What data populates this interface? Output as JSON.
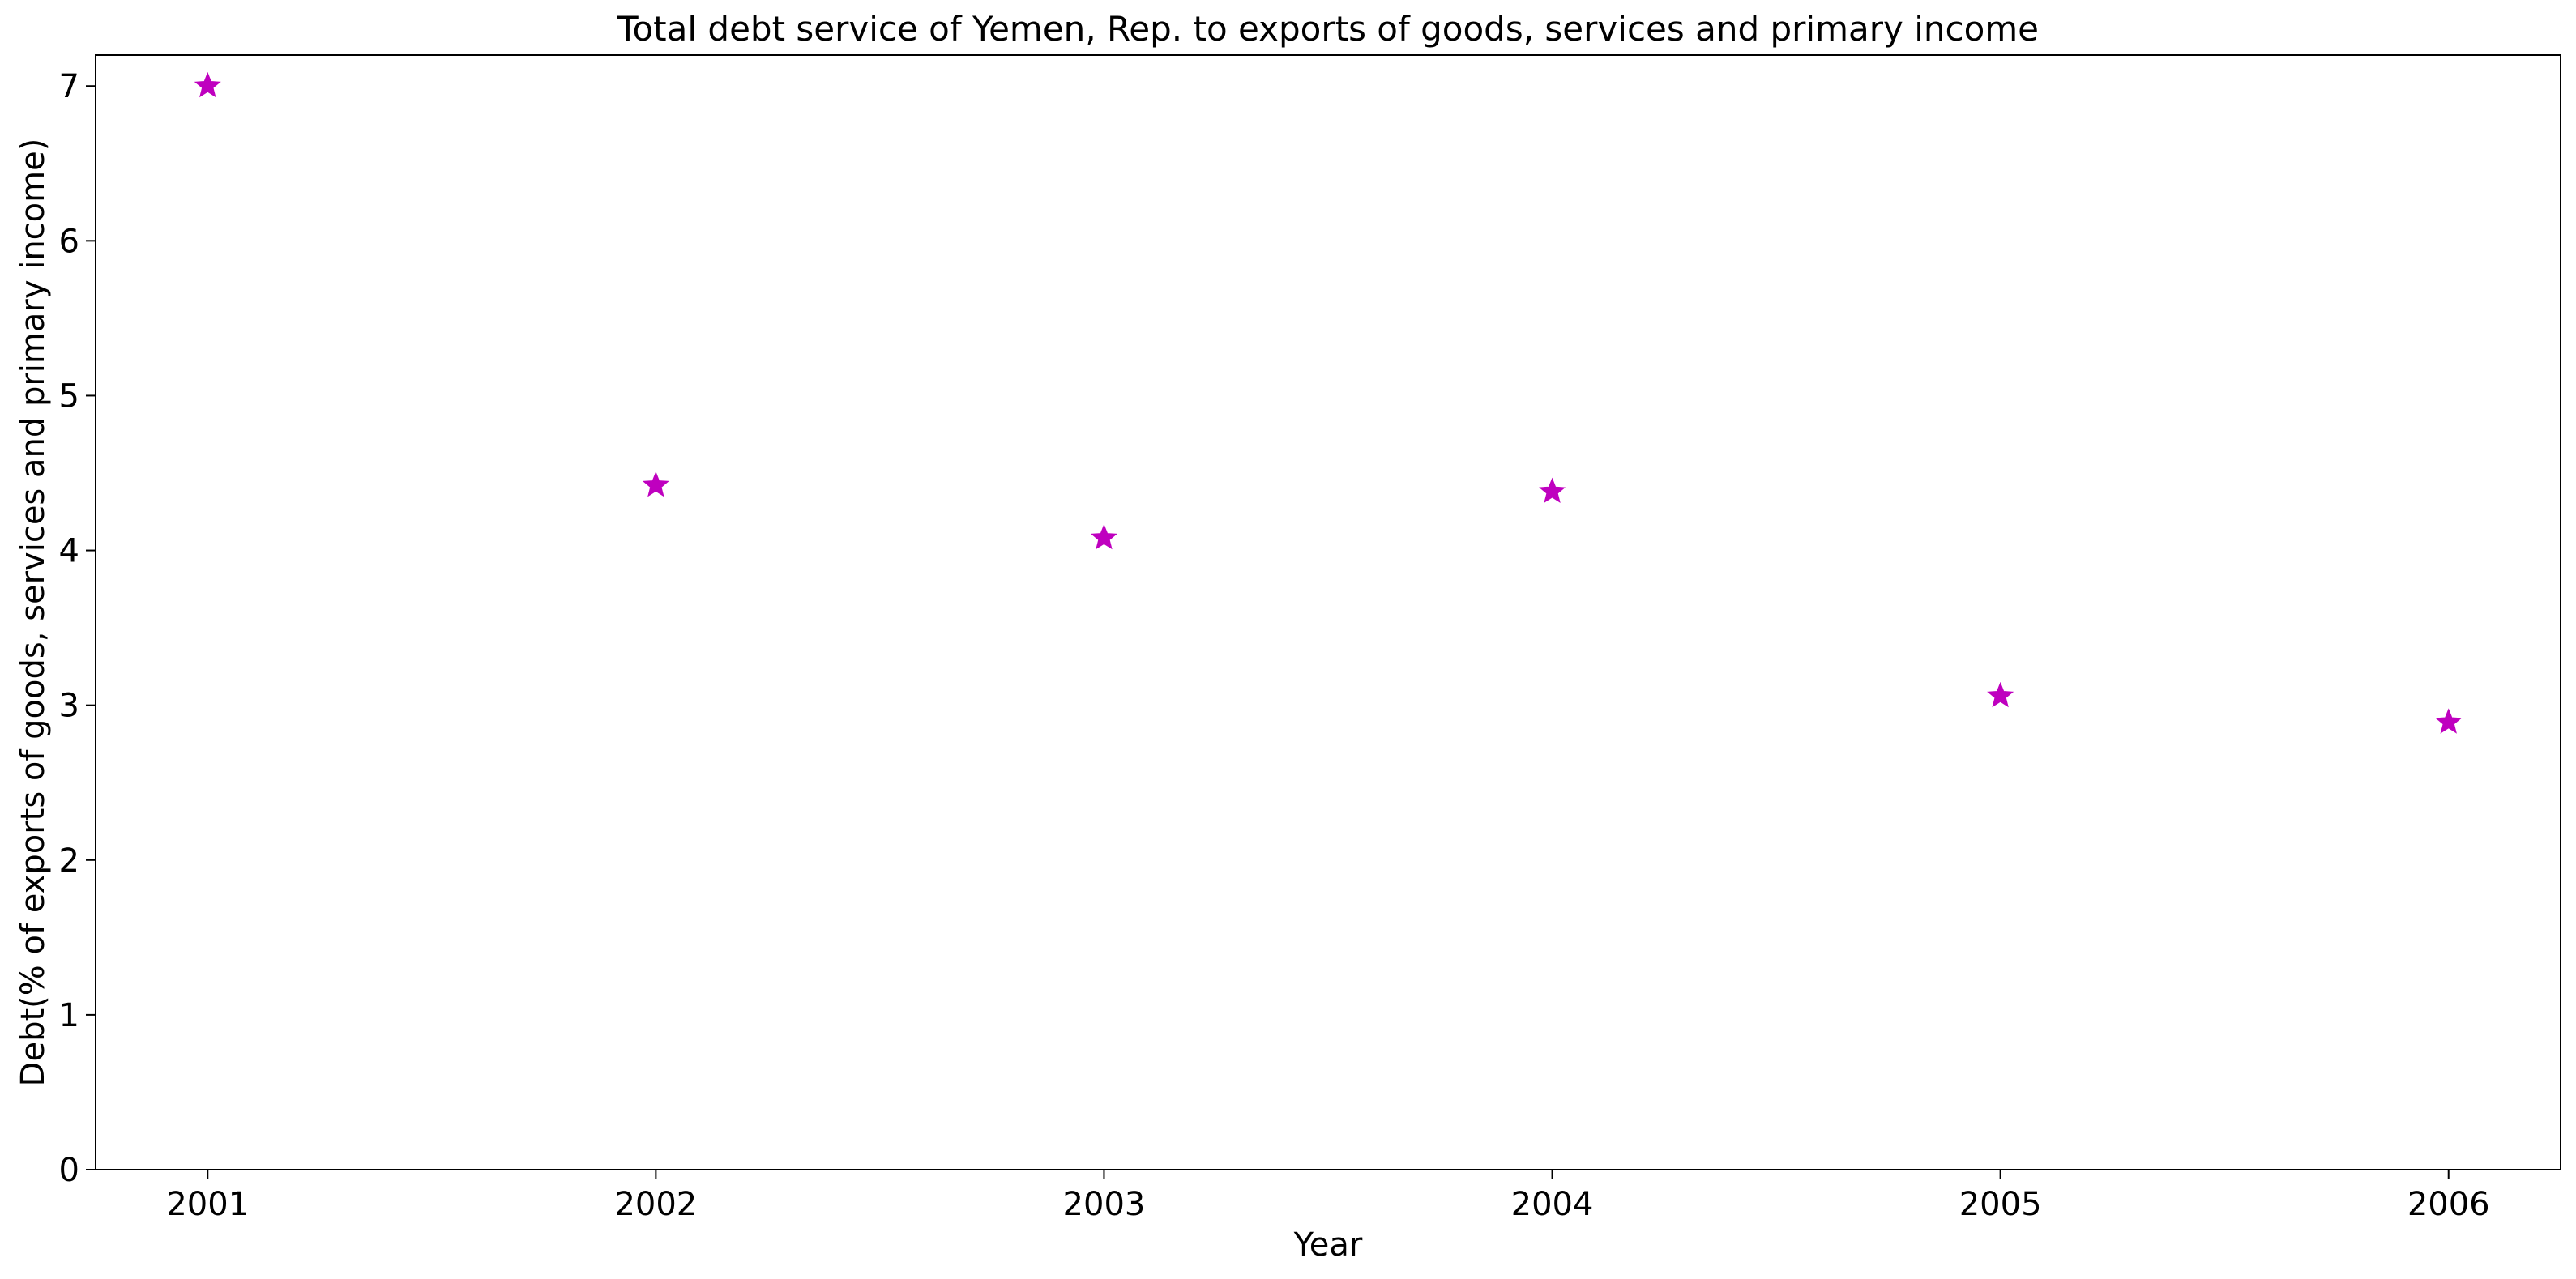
{
  "chart_data": {
    "type": "scatter",
    "title": "Total debt service of Yemen, Rep. to exports of goods, services and primary income",
    "xlabel": "Year",
    "ylabel": "Debt(% of exports of goods, services and primary income)",
    "x": [
      "2001",
      "2002",
      "2003",
      "2004",
      "2005",
      "2006"
    ],
    "y": [
      7.0,
      4.42,
      4.08,
      4.38,
      3.06,
      2.89
    ],
    "ylim": [
      0,
      7.2
    ],
    "yticks": [
      0,
      1,
      2,
      3,
      4,
      5,
      6,
      7
    ],
    "grid": false,
    "marker": "star",
    "colors": {
      "marker": "#BF00BF",
      "axes": "#000000",
      "background": "#ffffff"
    }
  }
}
